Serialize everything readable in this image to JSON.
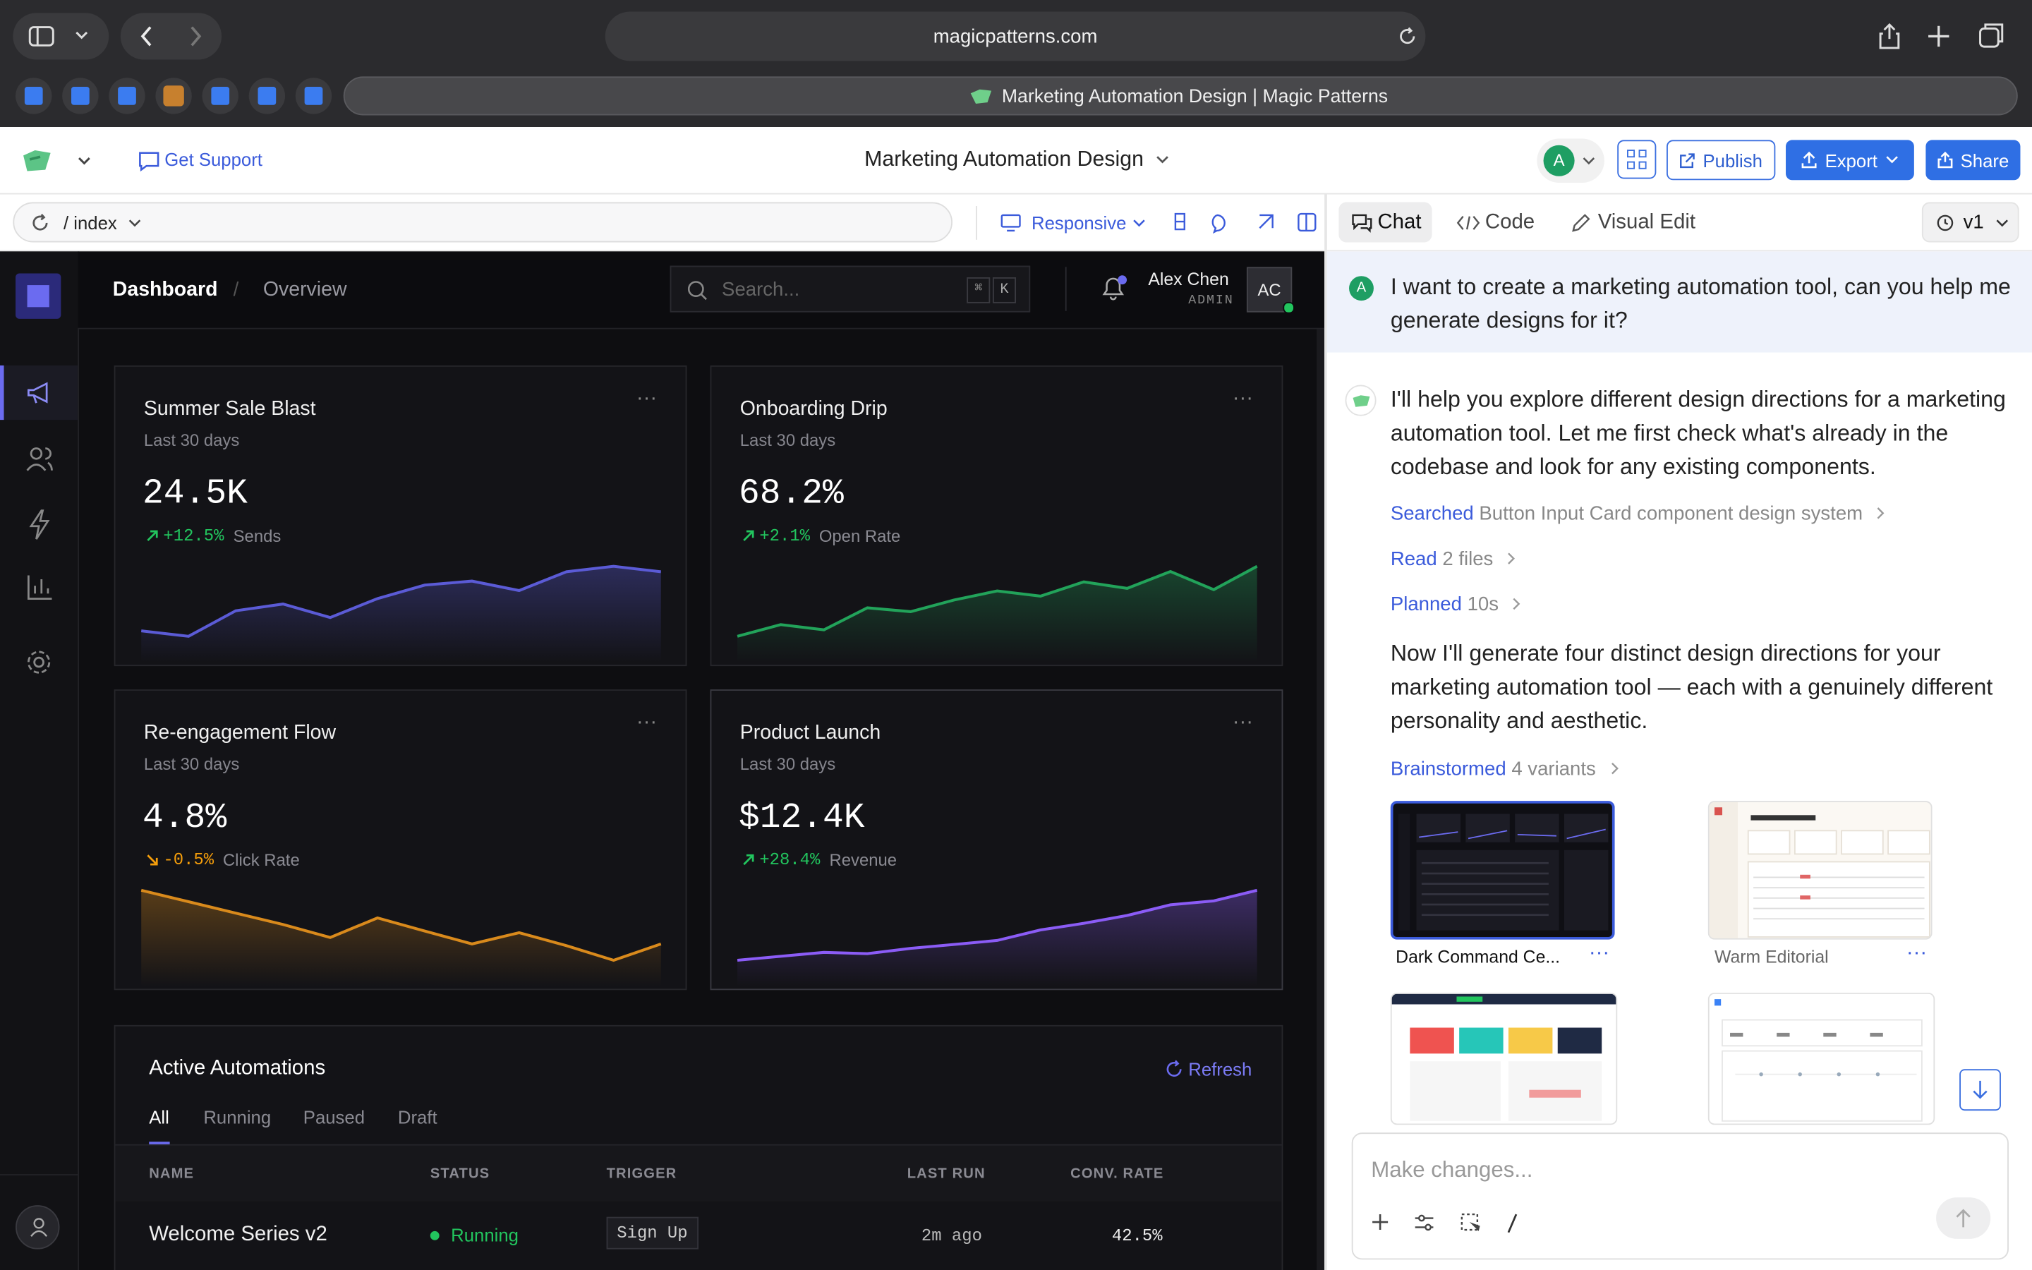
{
  "browser": {
    "url": "magicpatterns.com",
    "tab_title": "Marketing Automation Design | Magic Patterns"
  },
  "header": {
    "support": "Get Support",
    "project": "Marketing Automation Design",
    "avatar": "A",
    "publish": "Publish",
    "export": "Export",
    "share": "Share"
  },
  "toolbar": {
    "path": "/ index",
    "viewport": "Responsive",
    "tabs": [
      "Chat",
      "Code",
      "Visual Edit"
    ],
    "version": "v1"
  },
  "preview": {
    "breadcrumb": [
      "Dashboard",
      "/",
      "Overview"
    ],
    "search_placeholder": "Search...",
    "shortcut": [
      "⌘",
      "K"
    ],
    "user": {
      "name": "Alex Chen",
      "role": "ADMIN",
      "initials": "AC"
    },
    "cards": [
      {
        "title": "Summer Sale Blast",
        "period": "Last 30 days",
        "value": "24.5K",
        "change": "+12.5%",
        "metric": "Sends",
        "trend": "up",
        "color": "#5b5bd6",
        "sparkline": [
          14,
          10,
          29,
          34,
          24,
          38,
          48,
          51,
          44,
          58,
          62,
          58
        ]
      },
      {
        "title": "Onboarding Drip",
        "period": "Last 30 days",
        "value": "68.2%",
        "change": "+2.1%",
        "metric": "Open Rate",
        "trend": "up",
        "color": "#22a35a",
        "sparkline": [
          9,
          18,
          14,
          31,
          28,
          37,
          44,
          40,
          51,
          46,
          59,
          45,
          63
        ]
      },
      {
        "title": "Re-engagement Flow",
        "period": "Last 30 days",
        "value": "4.8%",
        "change": "-0.5%",
        "metric": "Click Rate",
        "trend": "down",
        "color": "#d98a1c",
        "sparkline": [
          61,
          54,
          47,
          40,
          32,
          44,
          36,
          28,
          35,
          27,
          18,
          28
        ]
      },
      {
        "title": "Product Launch",
        "period": "Last 30 days",
        "value": "$12.4K",
        "change": "+28.4%",
        "metric": "Revenue",
        "trend": "up",
        "color": "#8b5cf6",
        "sparkline": [
          9,
          12,
          15,
          14,
          18,
          21,
          24,
          32,
          37,
          43,
          51,
          54,
          62
        ]
      }
    ],
    "automations": {
      "title": "Active Automations",
      "refresh": "Refresh",
      "tabs": [
        "All",
        "Running",
        "Paused",
        "Draft"
      ],
      "columns": [
        "NAME",
        "STATUS",
        "TRIGGER",
        "LAST RUN",
        "CONV. RATE"
      ],
      "rows": [
        [
          "Welcome Series v2",
          "Running",
          "Sign Up",
          "2m ago",
          "42.5%"
        ]
      ]
    }
  },
  "chat": {
    "user_avatar": "A",
    "user_message": "I want to create a marketing automation tool, can you help me generate designs for it?",
    "reply_1": "I'll help you explore different design directions for a marketing automation tool. Let me first check what's already in the codebase and look for any existing components.",
    "steps": [
      {
        "label": "Searched",
        "detail": "Button Input Card component design system"
      },
      {
        "label": "Read",
        "detail": "2 files"
      },
      {
        "label": "Planned",
        "detail": "10s"
      }
    ],
    "reply_2": "Now I'll generate four distinct design directions for your marketing automation tool — each with a genuinely different personality and aesthetic.",
    "brainstorm": {
      "label": "Brainstormed",
      "detail": "4 variants"
    },
    "variants": [
      "Dark Command Ce...",
      "Warm Editorial"
    ],
    "input_placeholder": "Make changes..."
  }
}
